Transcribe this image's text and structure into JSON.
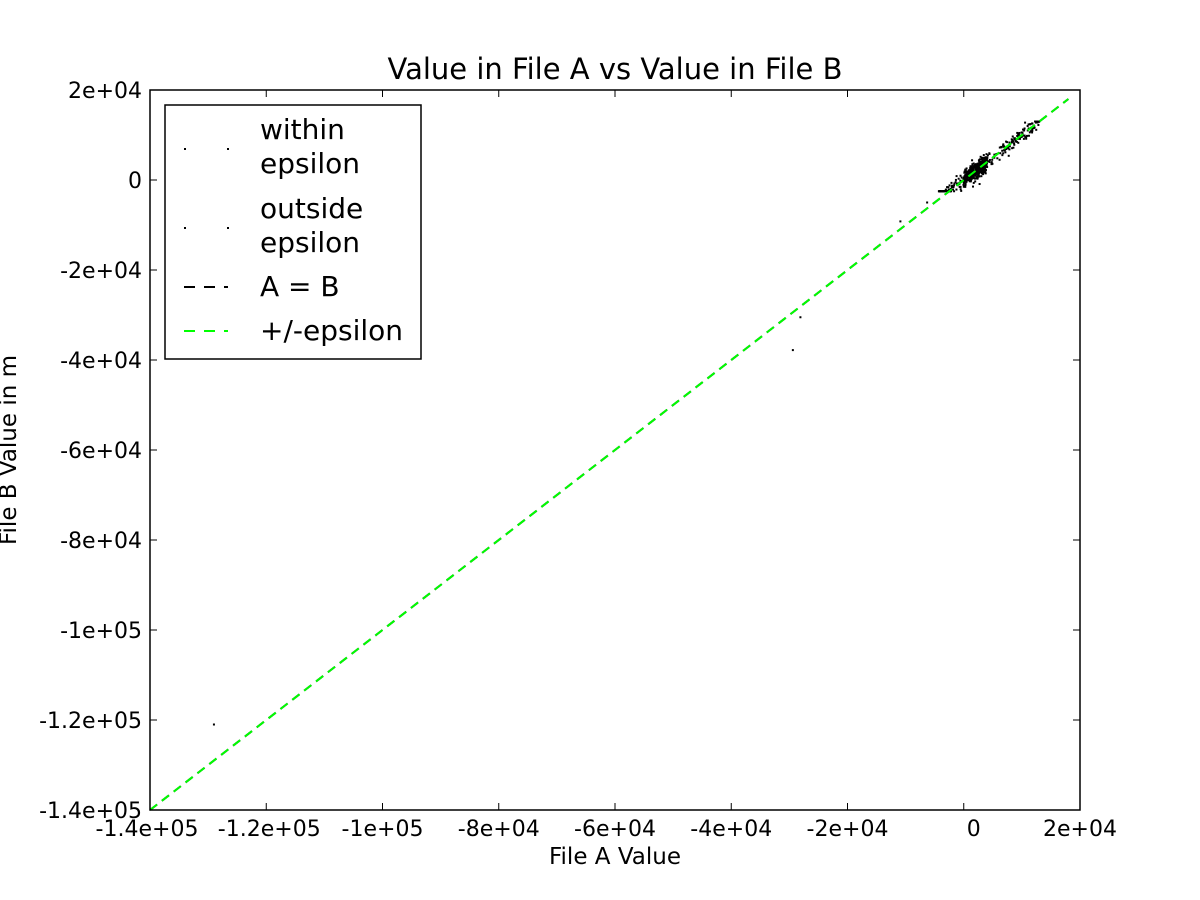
{
  "chart_data": {
    "type": "scatter",
    "title": "Value in File A vs Value in File B",
    "xlabel": "File A Value",
    "ylabel": "File B Value in m",
    "xlim": [
      -140000,
      20000
    ],
    "ylim": [
      -140000,
      20000
    ],
    "xticks": [
      -140000,
      -120000,
      -100000,
      -80000,
      -60000,
      -40000,
      -20000,
      0,
      20000
    ],
    "xtick_labels": [
      "-1.4e+05",
      "-1.2e+05",
      "-1e+05",
      "-8e+04",
      "-6e+04",
      "-4e+04",
      "-2e+04",
      "0",
      "2e+04"
    ],
    "yticks": [
      20000,
      0,
      -20000,
      -40000,
      -60000,
      -80000,
      -100000,
      -120000,
      -140000
    ],
    "ytick_labels": [
      "2e+04",
      "0",
      "-2e+04",
      "-4e+04",
      "-6e+04",
      "-8e+04",
      "-1e+05",
      "-1.2e+05",
      "-1.4e+05"
    ],
    "grid": false,
    "legend_position": "top-left",
    "series": [
      {
        "name": "within\nepsilon",
        "kind": "points",
        "color": "#000000",
        "x": [
          -129000,
          -29400,
          -28100,
          -10900,
          -6300
        ],
        "y": [
          -121000,
          -37800,
          -30500,
          -9200,
          -5000
        ],
        "cluster": {
          "x_range": [
            -4500,
            13000
          ],
          "y_range": [
            -2500,
            13000
          ],
          "relation": "y approximately equal to x",
          "dense_core": [
            0,
            4000
          ]
        }
      },
      {
        "name": "outside\nepsilon",
        "kind": "points",
        "color": "#000000",
        "x": [],
        "y": []
      },
      {
        "name": "A = B",
        "kind": "line",
        "style": "dashed",
        "color": "#000000",
        "x": [
          -140000,
          18000
        ],
        "y": [
          -140000,
          18000
        ]
      },
      {
        "name": "+/-epsilon",
        "kind": "line",
        "style": "dashed",
        "color": "#00ff00",
        "x": [
          -140000,
          18000
        ],
        "y": [
          -140000,
          18000
        ]
      }
    ]
  }
}
